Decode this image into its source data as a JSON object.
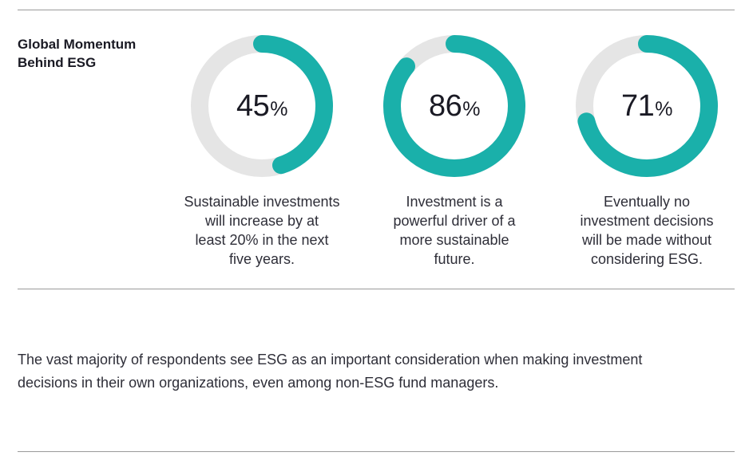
{
  "title_line1": "Global Momentum",
  "title_line2": "Behind ESG",
  "chart_data": {
    "type": "donut",
    "track_color": "#e5e5e5",
    "fill_color": "#1ab0aa",
    "items": [
      {
        "value": 45,
        "unit": "%",
        "caption": [
          "Sustainable investments",
          "will increase by at",
          "least 20% in the next",
          "five years."
        ]
      },
      {
        "value": 86,
        "unit": "%",
        "caption": [
          "Investment is a",
          "powerful driver of a",
          "more sustainable",
          "future."
        ]
      },
      {
        "value": 71,
        "unit": "%",
        "caption": [
          "Eventually no",
          "investment decisions",
          "will be made without",
          "considering ESG."
        ]
      }
    ]
  },
  "paragraph_line1": "The vast majority of respondents see ESG as an important consideration when making investment",
  "paragraph_line2": "decisions in their own organizations, even among non-ESG fund managers."
}
